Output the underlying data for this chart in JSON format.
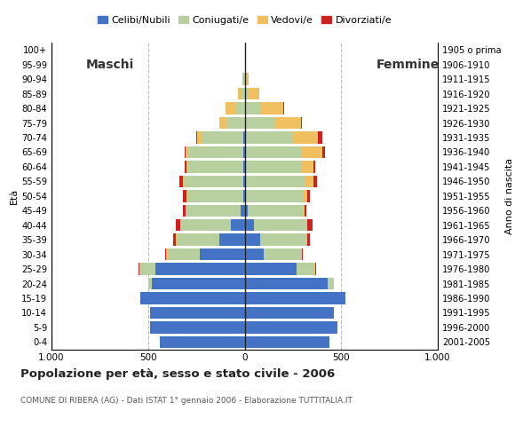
{
  "age_groups": [
    "0-4",
    "5-9",
    "10-14",
    "15-19",
    "20-24",
    "25-29",
    "30-34",
    "35-39",
    "40-44",
    "45-49",
    "50-54",
    "55-59",
    "60-64",
    "65-69",
    "70-74",
    "75-79",
    "80-84",
    "85-89",
    "90-94",
    "95-99",
    "100+"
  ],
  "birth_years": [
    "2001-2005",
    "1996-2000",
    "1991-1995",
    "1986-1990",
    "1981-1985",
    "1976-1980",
    "1971-1975",
    "1966-1970",
    "1961-1965",
    "1956-1960",
    "1951-1955",
    "1946-1950",
    "1941-1945",
    "1936-1940",
    "1931-1935",
    "1926-1930",
    "1921-1925",
    "1916-1920",
    "1911-1915",
    "1906-1910",
    "1905 o prima"
  ],
  "male": {
    "celibe": [
      440,
      490,
      490,
      540,
      480,
      460,
      230,
      130,
      70,
      20,
      5,
      5,
      5,
      5,
      5,
      0,
      0,
      0,
      0,
      0,
      0
    ],
    "coniugato": [
      0,
      0,
      0,
      0,
      20,
      80,
      170,
      220,
      260,
      280,
      290,
      310,
      290,
      290,
      220,
      90,
      50,
      15,
      5,
      0,
      0
    ],
    "vedovo": [
      0,
      0,
      0,
      0,
      0,
      5,
      5,
      5,
      5,
      5,
      5,
      5,
      5,
      10,
      20,
      40,
      50,
      20,
      5,
      0,
      0
    ],
    "divorziato": [
      0,
      0,
      0,
      0,
      0,
      5,
      5,
      15,
      20,
      15,
      20,
      20,
      10,
      5,
      5,
      0,
      0,
      0,
      0,
      0,
      0
    ]
  },
  "female": {
    "celibe": [
      440,
      480,
      460,
      520,
      430,
      270,
      100,
      80,
      50,
      15,
      5,
      5,
      5,
      0,
      0,
      0,
      0,
      0,
      0,
      0,
      0
    ],
    "coniugato": [
      0,
      0,
      0,
      0,
      30,
      90,
      190,
      240,
      270,
      285,
      300,
      310,
      290,
      290,
      250,
      160,
      80,
      15,
      0,
      0,
      0
    ],
    "vedovo": [
      0,
      0,
      0,
      0,
      0,
      5,
      5,
      5,
      5,
      10,
      20,
      40,
      60,
      110,
      130,
      130,
      120,
      60,
      20,
      5,
      0
    ],
    "divorziato": [
      0,
      0,
      0,
      0,
      0,
      5,
      5,
      15,
      25,
      10,
      15,
      20,
      10,
      15,
      20,
      5,
      5,
      0,
      0,
      0,
      0
    ]
  },
  "colors": {
    "celibe": "#4472c4",
    "coniugato": "#b8cfa0",
    "vedovo": "#f0c060",
    "divorziato": "#cc2222"
  },
  "legend_labels": [
    "Celibi/Nubili",
    "Coniugati/e",
    "Vedovi/e",
    "Divorziati/e"
  ],
  "title": "Popolazione per età, sesso e stato civile - 2006",
  "subtitle": "COMUNE DI RIBERA (AG) - Dati ISTAT 1° gennaio 2006 - Elaborazione TUTTITALIA.IT",
  "xlim": 1000,
  "background_color": "#ffffff",
  "grid_color": "#bbbbbb"
}
